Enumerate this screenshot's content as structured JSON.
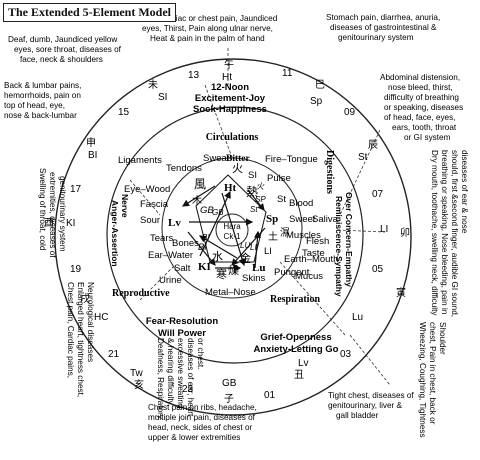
{
  "title": "The Extended  5-Element Model",
  "notes": {
    "deaf": [
      "Deaf, dumb, Jaundiced yellow",
      "eyes, sore throat, diseases of",
      "face, neck & shoulders"
    ],
    "cardiac": [
      "Cardiac or chest pain, Jaundiced",
      "eyes, Thirst, Pain along ulnar nerve,",
      "Heat & pain in the palm of hand"
    ],
    "stomach": [
      "Stomach pain, diarrhea, anuria,",
      "diseases of gastrointestinal &",
      "genitourinary system"
    ],
    "back": [
      "Back & lumbar pains,",
      "hemorrhoids, pain on",
      "top of head, eye,",
      "nose & back-lumbar"
    ],
    "abdominal": [
      "Abdominal distension,",
      "nose bleed, thirst,",
      "difficulty of breathing",
      "or speaking, diseases",
      "of head, face, eyes,",
      "ears, tooth, throat",
      "or GI system"
    ],
    "swelling": [
      "Swelling of throat, cold",
      "extremities, diseases of",
      "genitourinary system"
    ],
    "drymouth": [
      "Dry mouth, toothache, swelling neck, difficulty",
      "breathing or speaking, Nose bleeding, pain in",
      "should, first &second finger, audible GI sound,",
      "diseases of ear & nose"
    ],
    "chestpain": [
      "Chest pain, Cardiac pains,",
      "Enlarged heart, tightness chest,",
      "Neurological diseases"
    ],
    "wheezing": [
      "Wheezing, Coughing, Tightness",
      "chest, Pain in chest, back or",
      "Shoulder"
    ],
    "deafness": [
      "Deafness, Respiratory",
      "& hearing difficulty,",
      "excessive sweating,",
      "diseases of ear, heart",
      "or chest."
    ],
    "ribs": [
      "Chest pain on ribs, headache,",
      "multiple join pain, diseases of",
      "head, neck, sides of chest or",
      "upper & lower extremities"
    ],
    "tight": [
      "Tight chest, diseases of",
      "genitourinary, liver &",
      "gall bladder"
    ]
  },
  "hours": [
    "13",
    "11",
    "15",
    "09",
    "17",
    "07",
    "19",
    "05",
    "21",
    "03",
    "23",
    "01"
  ],
  "branches": [
    "午",
    "巳",
    "未",
    "辰",
    "申",
    "卯",
    "酉",
    "寅",
    "戌",
    "丑",
    "亥",
    "子"
  ],
  "meridians": [
    "Ht",
    "SI",
    "Sp",
    "St",
    "BI",
    "LI",
    "KI",
    "Lu",
    "HC",
    "Lv",
    "Tw",
    "GB"
  ],
  "noon": [
    "12-Noon",
    "Excitement-Joy",
    "Sock-Happiness"
  ],
  "circulations": "Circulations",
  "digestions": "Digestions",
  "respiration": "Respiration",
  "reproductive": "Reproductive",
  "fear": [
    "Fear-Resolution",
    "Will Power"
  ],
  "grief": [
    "Grief-Openness",
    "Anxiety-Letting Go"
  ],
  "over": [
    "Over Concern-Empathy",
    "Reminiscence-Sympathy"
  ],
  "nerve": [
    "Nerve",
    "Anger-Assertion"
  ],
  "fire": {
    "sweat": "Sweat",
    "bitter": "Bitter",
    "tongue": "Fire–Tongue",
    "pulse": "Pulse",
    "ht": "Ht",
    "si": "SI",
    "fire": "火",
    "heat": "熱"
  },
  "wood": {
    "tendons": "Tendons",
    "ligaments": "Ligaments",
    "eye": "Eye–Wood",
    "fascia": "Fascia",
    "sour": "Sour",
    "tears": "Tears",
    "lv": "Lv",
    "gb": "GB",
    "wind": "風",
    "wood": "木"
  },
  "earth": {
    "blood": "Blood",
    "sweet": "Sweet",
    "saliva": "Saliva",
    "muscles": "Muscles",
    "flesh": "Flesh",
    "taste": "Taste",
    "mouth": "Earth–Mouth",
    "sp": "Sp",
    "st": "St",
    "earth": "土",
    "damp": "濕"
  },
  "metal": {
    "pungent": "Pungent",
    "mucus": "Mucus",
    "skins": "Skins",
    "nose": "Metal–Nose",
    "lu": "Lu",
    "li": "LI",
    "metal": "金",
    "dry": "燥"
  },
  "water": {
    "bones": "Bones",
    "ear": "Ear–Water",
    "salt": "Salt",
    "urine": "Urine",
    "ki": "KI",
    "bl": "Bl",
    "water": "水",
    "cold": "寒"
  },
  "center": [
    "Hara",
    "Ck-1"
  ],
  "inner_labels": {
    "gb": "GB",
    "bl": "BI",
    "st": "St",
    "li": "LI",
    "sp": "SP",
    "lu": "LU",
    "fire": "火"
  }
}
